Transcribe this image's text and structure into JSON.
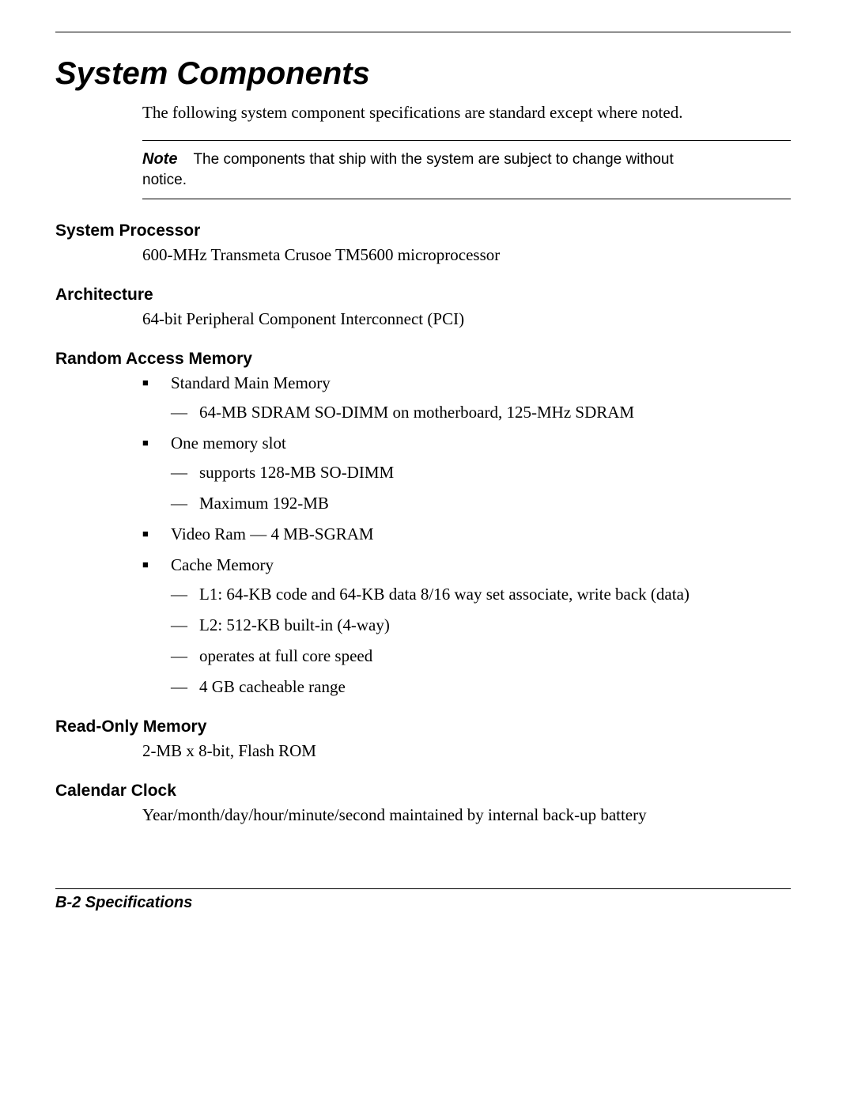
{
  "title": "System Components",
  "intro": "The following system component specifications are standard except where noted.",
  "note": {
    "label": "Note",
    "text_part1": "The components that ship with the system are subject to change without",
    "text_part2": "notice."
  },
  "sections": {
    "system_processor": {
      "head": "System Processor",
      "body": "600-MHz Transmeta Crusoe TM5600 microprocessor"
    },
    "architecture": {
      "head": "Architecture",
      "body": "64-bit Peripheral Component Interconnect (PCI)"
    },
    "ram": {
      "head": "Random Access Memory",
      "items": [
        {
          "label": "Standard Main Memory",
          "sub": [
            "64-MB SDRAM SO-DIMM on motherboard, 125-MHz SDRAM"
          ]
        },
        {
          "label": "One memory slot",
          "sub": [
            "supports 128-MB SO-DIMM",
            "Maximum 192-MB"
          ]
        },
        {
          "label": "Video Ram — 4 MB-SGRAM",
          "sub": []
        },
        {
          "label": "Cache Memory",
          "sub": [
            "L1: 64-KB code and 64-KB data 8/16 way set associate, write back (data)",
            "L2: 512-KB built-in (4-way)",
            "operates at full core speed",
            "4 GB cacheable range"
          ]
        }
      ]
    },
    "rom": {
      "head": "Read-Only Memory",
      "body": "2-MB x 8-bit, Flash ROM"
    },
    "clock": {
      "head": "Calendar Clock",
      "body": "Year/month/day/hour/minute/second maintained by internal back-up battery"
    }
  },
  "footer": "B-2   Specifications",
  "style": {
    "page_bg": "#ffffff",
    "text_color": "#000000",
    "rule_color": "#000000",
    "title_font_family": "Arial",
    "title_font_size_pt": 30,
    "head_font_size_pt": 16,
    "body_font_size_pt": 16,
    "body_font_family": "Times New Roman",
    "note_font_family": "Arial"
  }
}
